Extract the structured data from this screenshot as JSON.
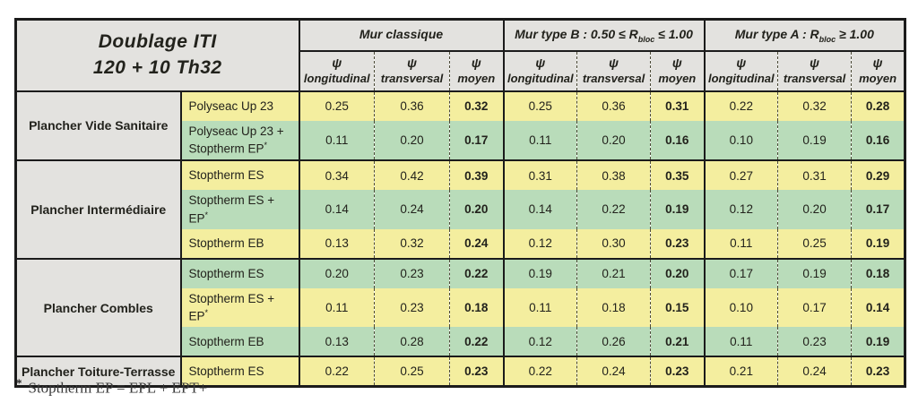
{
  "colors": {
    "yellow": "#f4ee9f",
    "green": "#b9dcba",
    "header_grey": "#e3e2df",
    "border": "#1b1b1b"
  },
  "table": {
    "title_line1": "Doublage ITI",
    "title_line2": "120 + 10 Th32",
    "psi": "ψ",
    "sub_headers": [
      "longitudinal",
      "transversal",
      "moyen"
    ],
    "col_groups": [
      {
        "title_prefix": "Mur classique",
        "r_sub": "",
        "title_suffix": ""
      },
      {
        "title_prefix": "Mur type B : 0.50 ≤ R",
        "r_sub": "bloc",
        "title_suffix": " ≤ 1.00"
      },
      {
        "title_prefix": "Mur type A : R",
        "r_sub": "bloc",
        "title_suffix": " ≥ 1.00"
      }
    ],
    "row_groups": [
      {
        "label": "Plancher Vide Sanitaire",
        "rows": [
          {
            "product": "Polyseac Up 23",
            "marker": false,
            "tint": "yellow",
            "values": [
              "0.25",
              "0.36",
              "0.32",
              "0.25",
              "0.36",
              "0.31",
              "0.22",
              "0.32",
              "0.28"
            ]
          },
          {
            "product": "Polyseac Up 23 + Stoptherm EP",
            "marker": true,
            "tint": "green",
            "values": [
              "0.11",
              "0.20",
              "0.17",
              "0.11",
              "0.20",
              "0.16",
              "0.10",
              "0.19",
              "0.16"
            ]
          }
        ]
      },
      {
        "label": "Plancher Intermédiaire",
        "rows": [
          {
            "product": "Stoptherm ES",
            "marker": false,
            "tint": "yellow",
            "values": [
              "0.34",
              "0.42",
              "0.39",
              "0.31",
              "0.38",
              "0.35",
              "0.27",
              "0.31",
              "0.29"
            ]
          },
          {
            "product": "Stoptherm ES + EP",
            "marker": true,
            "tint": "green",
            "values": [
              "0.14",
              "0.24",
              "0.20",
              "0.14",
              "0.22",
              "0.19",
              "0.12",
              "0.20",
              "0.17"
            ]
          },
          {
            "product": "Stoptherm EB",
            "marker": false,
            "tint": "yellow",
            "values": [
              "0.13",
              "0.32",
              "0.24",
              "0.12",
              "0.30",
              "0.23",
              "0.11",
              "0.25",
              "0.19"
            ]
          }
        ]
      },
      {
        "label": "Plancher Combles",
        "rows": [
          {
            "product": "Stoptherm ES",
            "marker": false,
            "tint": "green",
            "values": [
              "0.20",
              "0.23",
              "0.22",
              "0.19",
              "0.21",
              "0.20",
              "0.17",
              "0.19",
              "0.18"
            ]
          },
          {
            "product": "Stoptherm ES + EP",
            "marker": true,
            "tint": "yellow",
            "values": [
              "0.11",
              "0.23",
              "0.18",
              "0.11",
              "0.18",
              "0.15",
              "0.10",
              "0.17",
              "0.14"
            ]
          },
          {
            "product": "Stoptherm EB",
            "marker": false,
            "tint": "green",
            "values": [
              "0.13",
              "0.28",
              "0.22",
              "0.12",
              "0.26",
              "0.21",
              "0.11",
              "0.23",
              "0.19"
            ]
          }
        ]
      },
      {
        "label": "Plancher Toiture-Terrasse",
        "rows": [
          {
            "product": "Stoptherm ES",
            "marker": false,
            "tint": "yellow",
            "values": [
              "0.22",
              "0.25",
              "0.23",
              "0.22",
              "0.24",
              "0.23",
              "0.21",
              "0.24",
              "0.23"
            ]
          }
        ]
      }
    ],
    "footnote_marker": "*",
    "footnote_text": "Stoptherm EP = EPL + EPT+"
  }
}
